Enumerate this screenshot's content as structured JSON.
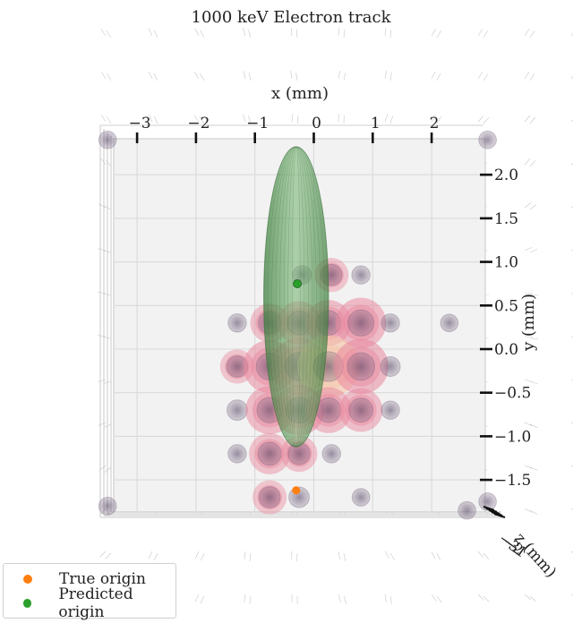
{
  "chart_data": {
    "type": "scatter",
    "title": "1000 keV Electron track",
    "xlabel": "x (mm)",
    "ylabel": "y (mm)",
    "zlabel": "z (mm)",
    "xlim": [
      -3.5,
      3.0
    ],
    "ylim": [
      -1.8,
      2.4
    ],
    "x_ticks": [
      -3,
      -2,
      -1,
      0,
      1,
      2
    ],
    "x_tick_labels": [
      "−3",
      "−2",
      "−1",
      "0",
      "1",
      "2"
    ],
    "y_ticks": [
      2.0,
      1.5,
      1.0,
      0.5,
      0.0,
      -0.5,
      -1.0,
      -1.5
    ],
    "y_tick_labels": [
      "2.0",
      "1.5",
      "1.0",
      "0.5",
      "0.0",
      "−0.5",
      "−1.0",
      "−1.5"
    ],
    "z_tick_labels": [
      "−3",
      "−2",
      "−1"
    ],
    "view": "top-down 3D (x–y plane)",
    "grid": true,
    "legend_position": "bottom-left",
    "colors": {
      "true_origin": "#ff7f0e",
      "predicted_origin": "#2ca02c",
      "hits_gray": "#6e5a78",
      "hits_pink": "#e8889e",
      "hits_peach": "#f6c4a6",
      "uncertainty_ellipsoid": "#4f9a50"
    },
    "series": [
      {
        "name": "True origin",
        "x": [
          -0.3
        ],
        "y": [
          -1.62
        ]
      },
      {
        "name": "Predicted origin",
        "x": [
          -0.28
        ],
        "y": [
          0.75
        ]
      }
    ],
    "detector_hits": [
      {
        "x": -3.5,
        "y": 2.4,
        "intensity": 0.1
      },
      {
        "x": -3.5,
        "y": -1.8,
        "intensity": 0.1
      },
      {
        "x": 2.95,
        "y": 2.4,
        "intensity": 0.1
      },
      {
        "x": 2.6,
        "y": -1.85,
        "intensity": 0.1
      },
      {
        "x": 2.95,
        "y": -1.75,
        "intensity": 0.1
      },
      {
        "x": -0.2,
        "y": 0.85,
        "intensity": 0.2
      },
      {
        "x": 0.3,
        "y": 0.85,
        "intensity": 0.35
      },
      {
        "x": 0.8,
        "y": 0.85,
        "intensity": 0.15
      },
      {
        "x": -1.3,
        "y": 0.3,
        "intensity": 0.15
      },
      {
        "x": -0.75,
        "y": 0.3,
        "intensity": 0.45
      },
      {
        "x": -0.25,
        "y": 0.3,
        "intensity": 0.55
      },
      {
        "x": 0.25,
        "y": 0.3,
        "intensity": 0.6
      },
      {
        "x": 0.8,
        "y": 0.3,
        "intensity": 0.7
      },
      {
        "x": 1.3,
        "y": 0.3,
        "intensity": 0.15
      },
      {
        "x": 2.3,
        "y": 0.3,
        "intensity": 0.1
      },
      {
        "x": -1.3,
        "y": -0.2,
        "intensity": 0.35
      },
      {
        "x": -0.75,
        "y": -0.2,
        "intensity": 0.75
      },
      {
        "x": -0.25,
        "y": -0.2,
        "intensity": 0.85
      },
      {
        "x": 0.25,
        "y": -0.2,
        "intensity": 0.95
      },
      {
        "x": 0.8,
        "y": -0.2,
        "intensity": 0.8
      },
      {
        "x": 1.3,
        "y": -0.2,
        "intensity": 0.25
      },
      {
        "x": -1.3,
        "y": -0.7,
        "intensity": 0.3
      },
      {
        "x": -0.75,
        "y": -0.7,
        "intensity": 0.65
      },
      {
        "x": -0.25,
        "y": -0.7,
        "intensity": 0.7
      },
      {
        "x": 0.25,
        "y": -0.7,
        "intensity": 0.6
      },
      {
        "x": 0.8,
        "y": -0.7,
        "intensity": 0.55
      },
      {
        "x": 1.3,
        "y": -0.7,
        "intensity": 0.15
      },
      {
        "x": -1.3,
        "y": -1.2,
        "intensity": 0.15
      },
      {
        "x": -0.75,
        "y": -1.2,
        "intensity": 0.5
      },
      {
        "x": -0.25,
        "y": -1.2,
        "intensity": 0.4
      },
      {
        "x": 0.3,
        "y": -1.2,
        "intensity": 0.15
      },
      {
        "x": -0.75,
        "y": -1.7,
        "intensity": 0.35
      },
      {
        "x": -0.25,
        "y": -1.7,
        "intensity": 0.3
      },
      {
        "x": 0.8,
        "y": -1.7,
        "intensity": 0.1
      }
    ],
    "uncertainty_ellipsoid": {
      "center_x": -0.3,
      "center_y": 0.6,
      "semi_x": 0.55,
      "semi_y": 1.72
    },
    "legend": [
      "True origin",
      "Predicted origin"
    ]
  }
}
